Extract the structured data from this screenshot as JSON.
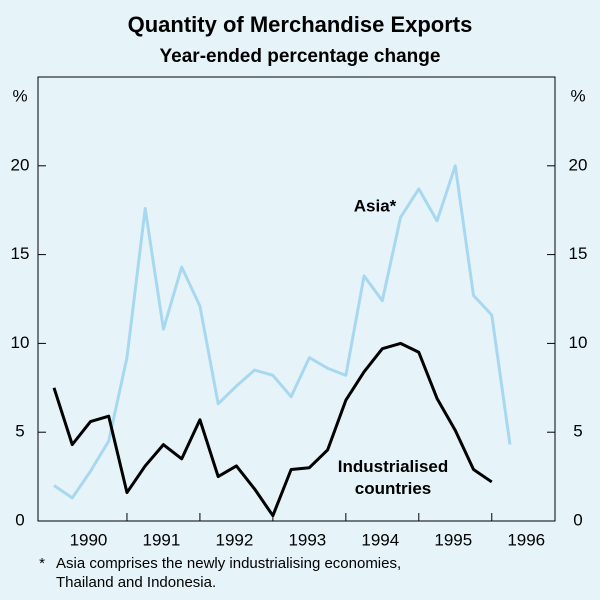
{
  "chart_data": {
    "type": "line",
    "title": "Quantity of Merchandise Exports",
    "subtitle": "Year-ended percentage change",
    "y_unit": "%",
    "y2_unit": "%",
    "categories": [
      null,
      null,
      "1990",
      null,
      null,
      null,
      "1991",
      null,
      null,
      null,
      "1992",
      null,
      null,
      null,
      "1993",
      null,
      null,
      null,
      "1994",
      null,
      null,
      null,
      "1995",
      null,
      null,
      null,
      "1996"
    ],
    "series": [
      {
        "name": "Asia*",
        "color": "#a8d8f0",
        "values": [
          2.0,
          1.3,
          2.8,
          4.5,
          9.2,
          17.6,
          10.8,
          14.3,
          12.1,
          6.6,
          7.6,
          8.5,
          8.2,
          7.0,
          9.2,
          8.6,
          8.2,
          13.8,
          12.4,
          17.1,
          18.7,
          16.9,
          20.0,
          12.7,
          11.6,
          4.3,
          null
        ]
      },
      {
        "name": "Industrialised countries",
        "color": "#000000",
        "values": [
          7.5,
          4.3,
          5.6,
          5.9,
          1.6,
          3.1,
          4.3,
          3.5,
          5.7,
          2.5,
          3.1,
          1.8,
          0.3,
          2.9,
          3.0,
          4.0,
          6.8,
          8.4,
          9.7,
          10.0,
          9.5,
          6.9,
          5.1,
          2.9,
          2.2,
          null,
          null
        ]
      }
    ],
    "ylim": [
      0,
      25
    ],
    "yticks": [
      0,
      5,
      10,
      15,
      20
    ],
    "y2lim": [
      0,
      25
    ],
    "y2ticks": [
      0,
      5,
      10,
      15,
      20
    ],
    "footnote": {
      "marker": "*",
      "lines": [
        "Asia comprises the newly industrialising economies,",
        "Thailand and Indonesia."
      ]
    }
  }
}
